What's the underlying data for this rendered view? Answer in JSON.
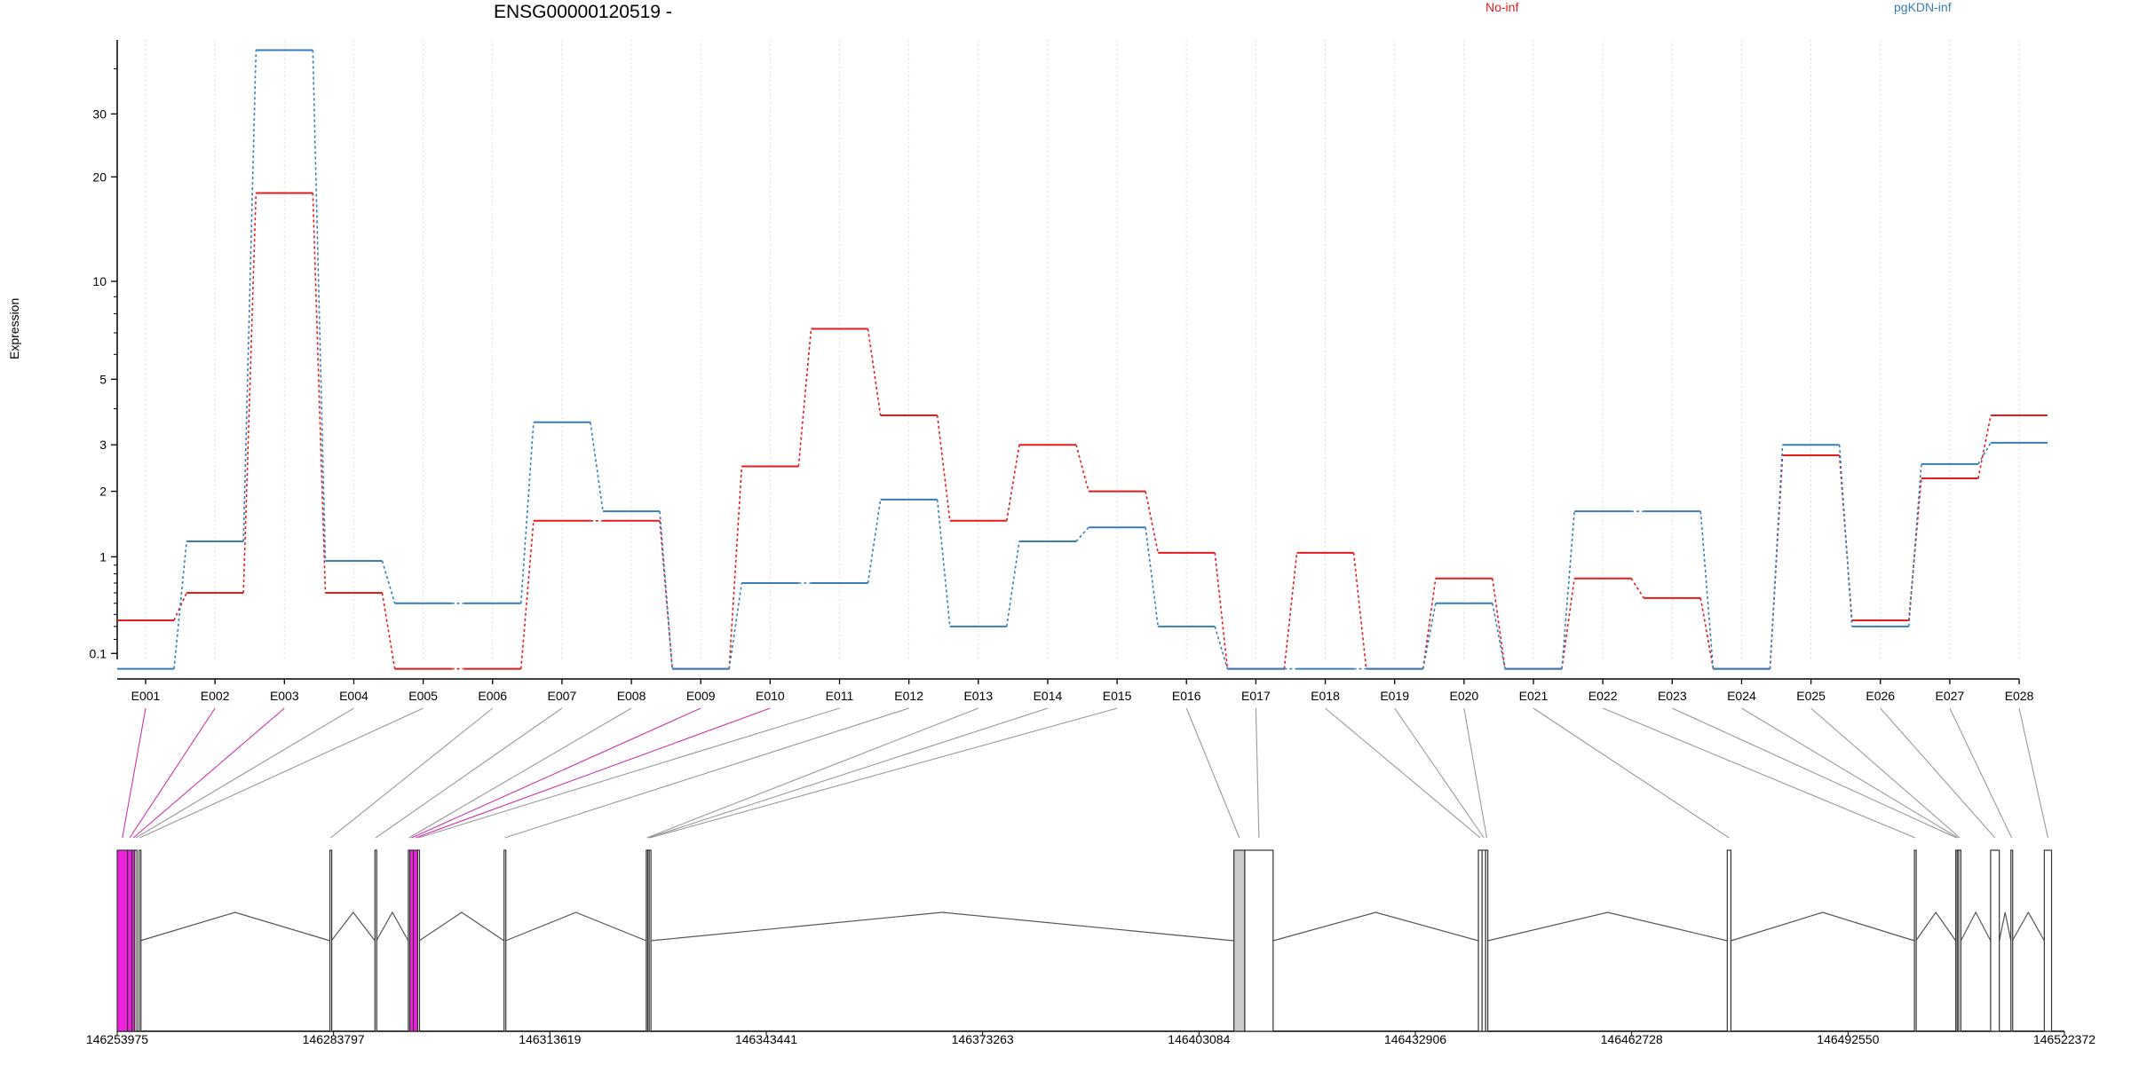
{
  "chart_data": {
    "type": "line",
    "title": "ENSG00000120519 -",
    "ylabel": "Expression",
    "xlabel": "",
    "yscale": "log1p",
    "yticks": [
      0.1,
      1,
      2,
      3,
      5,
      10,
      20,
      30
    ],
    "ylim": [
      0,
      48
    ],
    "legend_position": "top-right",
    "grid": "vertical-minor",
    "categories": [
      "E001",
      "E002",
      "E003",
      "E004",
      "E005",
      "E006",
      "E007",
      "E008",
      "E009",
      "E010",
      "E011",
      "E012",
      "E013",
      "E014",
      "E015",
      "E016",
      "E017",
      "E018",
      "E019",
      "E020",
      "E021",
      "E022",
      "E023",
      "E024",
      "E025",
      "E026",
      "E027",
      "E028"
    ],
    "series": [
      {
        "name": "No-inf",
        "color": "#e41a1c",
        "values": [
          0.35,
          0.6,
          18,
          0.6,
          0,
          0,
          1.5,
          1.5,
          0,
          2.5,
          7.2,
          3.8,
          1.5,
          3.0,
          2.0,
          1.05,
          0,
          1.05,
          0,
          0.75,
          0,
          0.75,
          0.55,
          0,
          2.75,
          0.35,
          2.25,
          3.8
        ]
      },
      {
        "name": "pgKDN-inf",
        "color": "#377eb8",
        "values": [
          0,
          1.2,
          45,
          0.95,
          0.5,
          0.5,
          3.6,
          1.65,
          0,
          0.7,
          0.7,
          1.85,
          0.3,
          1.2,
          1.4,
          0.3,
          0,
          0,
          0,
          0.5,
          0,
          1.65,
          1.65,
          0,
          3.0,
          0.3,
          2.55,
          3.05
        ]
      }
    ],
    "gene_model": {
      "coordinate_ticks": [
        "146253975",
        "146283797",
        "146313619",
        "146343441",
        "146373263",
        "146403084",
        "146432906",
        "146462728",
        "146492550",
        "146522372"
      ],
      "coordinate_tick_values": [
        146253975,
        146283797,
        146313619,
        146343441,
        146373263,
        146403084,
        146432906,
        146462728,
        146492550,
        146522372
      ],
      "exons": [
        {
          "id": "E001",
          "start": 146253975,
          "end": 146255400,
          "highlight": "#ee22dd"
        },
        {
          "id": "E002",
          "start": 146255400,
          "end": 146256000,
          "highlight": "#ee22dd"
        },
        {
          "id": "E003",
          "start": 146256000,
          "end": 146256400,
          "highlight": "#ee22dd"
        },
        {
          "id": "E004",
          "start": 146256400,
          "end": 146256700,
          "highlight": "#ffffff"
        },
        {
          "id": "E005",
          "start": 146257000,
          "end": 146257150,
          "highlight": "#ffffff"
        },
        {
          "id": "E006",
          "start": 146283300,
          "end": 146283500,
          "highlight": "#ffffff"
        },
        {
          "id": "E007",
          "start": 146289500,
          "end": 146289700,
          "highlight": "#ffffff"
        },
        {
          "id": "E008",
          "start": 146294100,
          "end": 146294300,
          "highlight": "#ffffff"
        },
        {
          "id": "E009",
          "start": 146294300,
          "end": 146294800,
          "highlight": "#ee22dd"
        },
        {
          "id": "E010",
          "start": 146294800,
          "end": 146295400,
          "highlight": "#ee22dd"
        },
        {
          "id": "E011",
          "start": 146295400,
          "end": 146295600,
          "highlight": "#ffffff"
        },
        {
          "id": "E012",
          "start": 146307300,
          "end": 146307500,
          "highlight": "#ffffff"
        },
        {
          "id": "E013",
          "start": 146326900,
          "end": 146327100,
          "highlight": "#ffffff"
        },
        {
          "id": "E014",
          "start": 146327100,
          "end": 146327300,
          "highlight": "#ffffff"
        },
        {
          "id": "E015",
          "start": 146327300,
          "end": 146327500,
          "highlight": "#ffffff"
        },
        {
          "id": "E016",
          "start": 146407900,
          "end": 146409400,
          "highlight": "#cccccc"
        },
        {
          "id": "E017",
          "start": 146409400,
          "end": 146413300,
          "highlight": "#ffffff"
        },
        {
          "id": "E018",
          "start": 146441600,
          "end": 146442100,
          "highlight": "#ffffff"
        },
        {
          "id": "E019",
          "start": 146442100,
          "end": 146442600,
          "highlight": "#ffffff"
        },
        {
          "id": "E020",
          "start": 146442600,
          "end": 146442900,
          "highlight": "#ffffff"
        },
        {
          "id": "E021",
          "start": 146475900,
          "end": 146476400,
          "highlight": "#ffffff"
        },
        {
          "id": "E022",
          "start": 146501700,
          "end": 146501900,
          "highlight": "#ffffff"
        },
        {
          "id": "E023",
          "start": 146507400,
          "end": 146507600,
          "highlight": "#ffffff"
        },
        {
          "id": "E024",
          "start": 146507600,
          "end": 146507800,
          "highlight": "#ffffff"
        },
        {
          "id": "E025",
          "start": 146507800,
          "end": 146508100,
          "highlight": "#ffffff"
        },
        {
          "id": "E026",
          "start": 146512200,
          "end": 146513400,
          "highlight": "#ffffff"
        },
        {
          "id": "E027",
          "start": 146515000,
          "end": 146515200,
          "highlight": "#ffffff"
        },
        {
          "id": "E028",
          "start": 146519600,
          "end": 146520600,
          "highlight": "#ffffff"
        }
      ]
    }
  }
}
